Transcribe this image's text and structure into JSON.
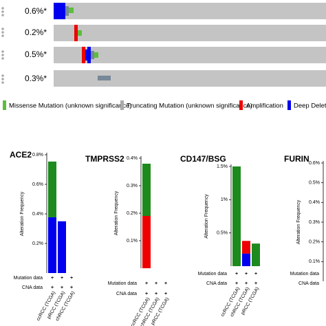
{
  "oncoprint": {
    "rows": [
      {
        "label": "0.6%*"
      },
      {
        "label": "0.2%*"
      },
      {
        "label": "0.5%*"
      },
      {
        "label": "0.3%*"
      }
    ],
    "legend": [
      "Missense Mutation (unknown significance)",
      "Truncating Mutation (unknown significance)",
      "Amplification",
      "Deep Deletion"
    ]
  },
  "chart_data": [
    {
      "type": "bar",
      "title": "ACE2",
      "y_label": "Alteration Frequency",
      "row_labels": [
        "Mutation data",
        "CNA data"
      ],
      "row_marker": "+",
      "categories": [
        "ccRCC (TCGA)",
        "pRCC (TCGA)",
        "chRCC (TCGA)"
      ],
      "series": [
        {
          "color": "#0000ee",
          "values": [
            0.377,
            0.35,
            0
          ]
        },
        {
          "color": "#ee0000",
          "values": [
            0,
            0,
            0
          ]
        },
        {
          "color": "#1d8a1d",
          "values": [
            0.377,
            0,
            0
          ]
        }
      ],
      "ylim": [
        0,
        0.8
      ],
      "yticks": [
        {
          "value": 0.2,
          "label": "0.2%"
        },
        {
          "value": 0.4,
          "label": "0.4%"
        },
        {
          "value": 0.6,
          "label": "0.6%"
        },
        {
          "value": 0.8,
          "label": "0.8%"
        }
      ]
    },
    {
      "type": "bar",
      "title": "TMPRSS2",
      "y_label": "Alteration Frequency",
      "row_labels": [
        "Mutation data",
        "CNA data"
      ],
      "row_marker": "+",
      "categories": [
        "ccRCC (TCGA)",
        "chRCC (TCGA)",
        "pRCC (TCGA)"
      ],
      "series": [
        {
          "color": "#0000ee",
          "values": [
            0,
            0,
            0
          ]
        },
        {
          "color": "#ee0000",
          "values": [
            0.19,
            0,
            0
          ]
        },
        {
          "color": "#1d8a1d",
          "values": [
            0.19,
            0,
            0
          ]
        }
      ],
      "ylim": [
        0,
        0.4
      ],
      "yticks": [
        {
          "value": 0.1,
          "label": "0.1%"
        },
        {
          "value": 0.2,
          "label": "0.2%"
        },
        {
          "value": 0.3,
          "label": "0.3%"
        },
        {
          "value": 0.4,
          "label": "0.4%"
        }
      ]
    },
    {
      "type": "bar",
      "title": "CD147/BSG",
      "y_label": "Alteration Frequency",
      "row_labels": [
        "Mutation data",
        "CNA data"
      ],
      "row_marker": "+",
      "categories": [
        "ccRCC (TCGA)",
        "chRCC (TCGA)",
        "pRCC (TCGA)"
      ],
      "series": [
        {
          "color": "#0000ee",
          "values": [
            0,
            0.19,
            0
          ]
        },
        {
          "color": "#ee0000",
          "values": [
            0,
            0.19,
            0
          ]
        },
        {
          "color": "#1d8a1d",
          "values": [
            1.5,
            0,
            0.34
          ]
        }
      ],
      "ylim": [
        0,
        1.5
      ],
      "yticks": [
        {
          "value": 0.5,
          "label": "0.5%"
        },
        {
          "value": 1,
          "label": "1%"
        },
        {
          "value": 1.5,
          "label": "1.5%"
        }
      ]
    },
    {
      "type": "bar",
      "title": "FURIN",
      "y_label": "Alteration Frequency",
      "row_labels": [
        "Mutation data",
        "CNA data"
      ],
      "categories": [],
      "series": [],
      "ylim": [
        0,
        0.6
      ],
      "yticks": [
        {
          "value": 0.1,
          "label": "0.1%"
        },
        {
          "value": 0.2,
          "label": "0.2%"
        },
        {
          "value": 0.3,
          "label": "0.3%"
        },
        {
          "value": 0.4,
          "label": "0.4%"
        },
        {
          "value": 0.5,
          "label": "0.5%"
        },
        {
          "value": 0.6,
          "label": "0.6%"
        }
      ]
    }
  ]
}
